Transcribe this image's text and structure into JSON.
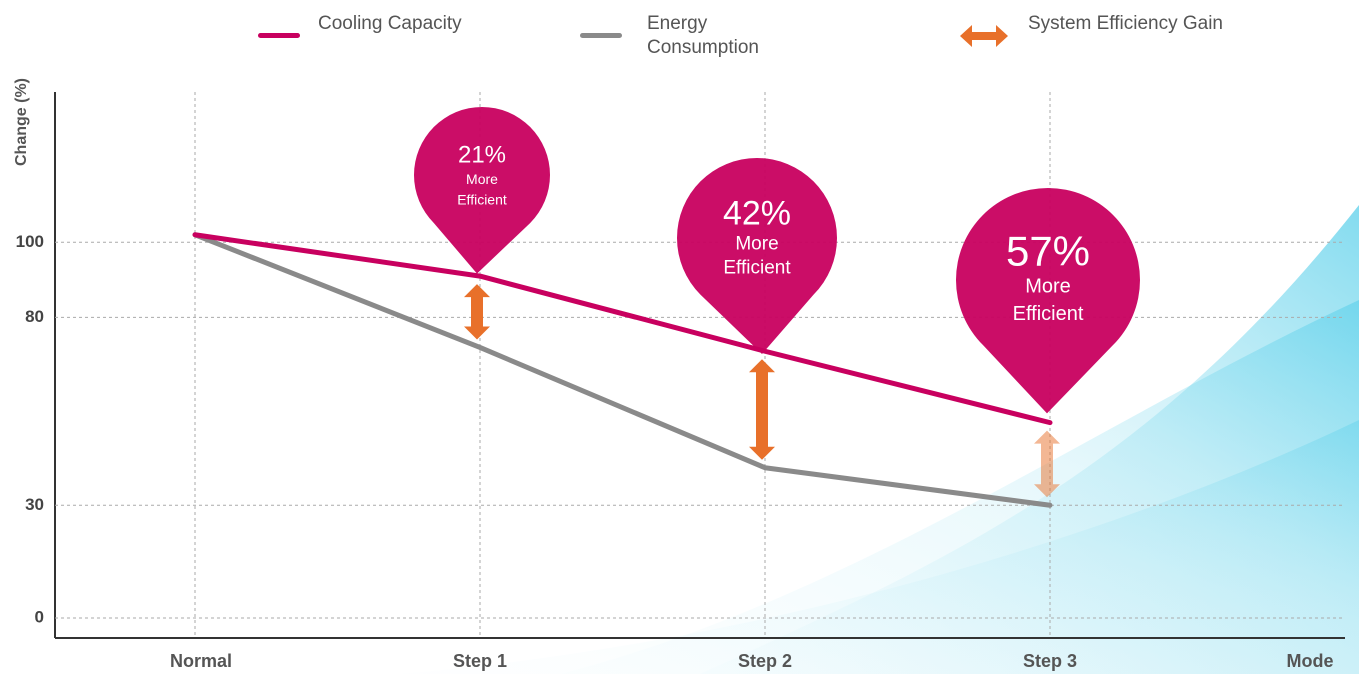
{
  "chart_data": {
    "type": "line",
    "y_label": "Change (%)",
    "x_label": "Mode",
    "categories": [
      "Normal",
      "Step 1",
      "Step 2",
      "Step 3"
    ],
    "ylim": [
      0,
      140
    ],
    "yticks": [
      0,
      30,
      80,
      100
    ],
    "grid": true,
    "series": [
      {
        "name": "Cooling Capacity",
        "color": "#c8005f",
        "values": [
          102,
          91,
          71,
          52
        ]
      },
      {
        "name": "Energy Consumption",
        "color": "#8a8a8a",
        "values": [
          102,
          72,
          40,
          30
        ]
      }
    ],
    "gain_legend": {
      "name": "System Efficiency Gain",
      "color": "#e8702a"
    },
    "annotations": [
      {
        "value": 21,
        "label": "21%",
        "lines": [
          "More",
          "Efficient"
        ]
      },
      {
        "value": 42,
        "label": "42%",
        "lines": [
          "More",
          "Efficient"
        ]
      },
      {
        "value": 57,
        "label": "57%",
        "lines": [
          "More",
          "Efficient"
        ]
      }
    ]
  }
}
